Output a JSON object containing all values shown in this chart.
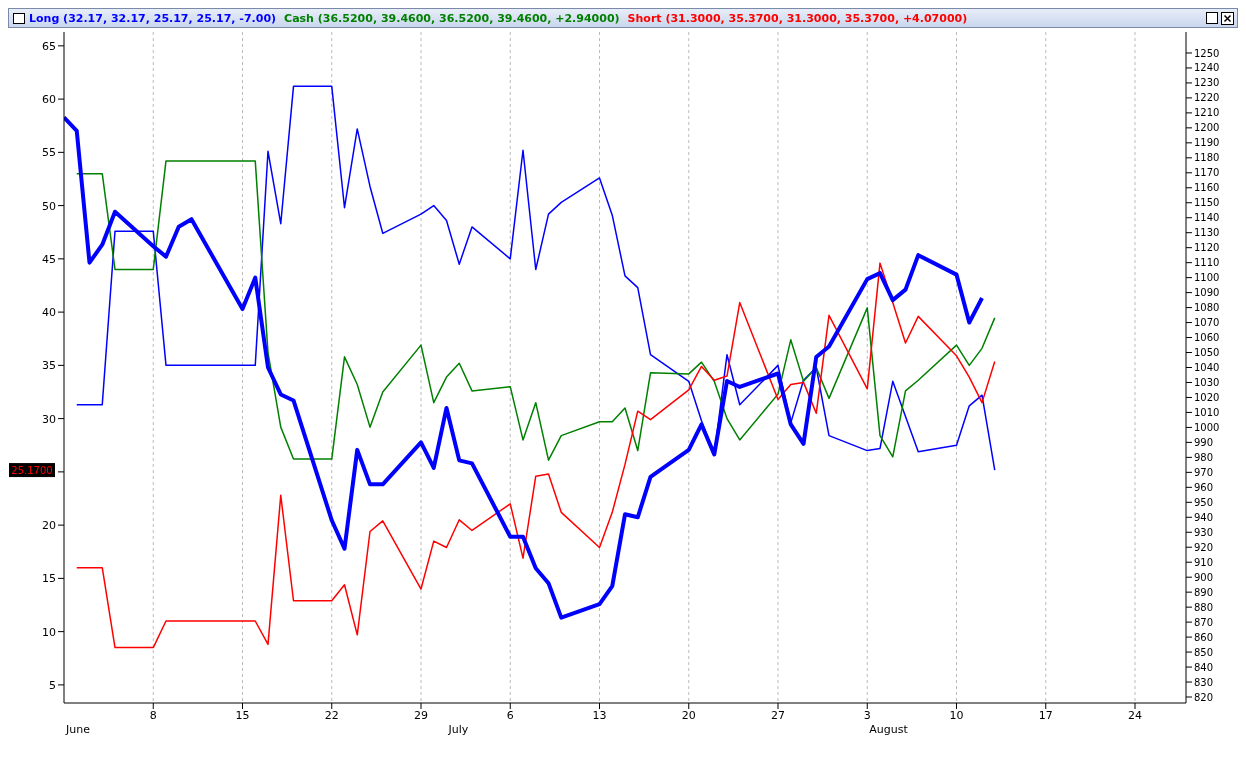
{
  "chart_data": {
    "type": "line",
    "legend": "top",
    "grid": "x",
    "marker": "none",
    "line_style": "solid",
    "annotations": [
      "25.1700",
      "June",
      "July",
      "August"
    ],
    "x": [
      "--06-01",
      "--06-02",
      "--06-03",
      "--06-04",
      "--06-05",
      "--06-08",
      "--06-09",
      "--06-10",
      "--06-11",
      "--06-15",
      "--06-16",
      "--06-17",
      "--06-18",
      "--06-19",
      "--06-22",
      "--06-23",
      "--06-24",
      "--06-25",
      "--06-26",
      "--06-29",
      "--06-30",
      "--07-01",
      "--07-02",
      "--07-03",
      "--07-06",
      "--07-07",
      "--07-08",
      "--07-09",
      "--07-10",
      "--07-13",
      "--07-14",
      "--07-15",
      "--07-16",
      "--07-17",
      "--07-20",
      "--07-21",
      "--07-22",
      "--07-23",
      "--07-24",
      "--07-27",
      "--07-28",
      "--07-29",
      "--07-30",
      "--07-31",
      "--08-03",
      "--08-04",
      "--08-05",
      "--08-06",
      "--08-07",
      "--08-10",
      "--08-11",
      "--08-12",
      "--08-13"
    ],
    "xlim": [
      "--06-01",
      "--08-28"
    ],
    "xticks": [
      {
        "value": "--06-08",
        "label": "8"
      },
      {
        "value": "--06-15",
        "label": "15"
      },
      {
        "value": "--06-22",
        "label": "22"
      },
      {
        "value": "--06-29",
        "label": "29"
      },
      {
        "value": "--07-06",
        "label": "6"
      },
      {
        "value": "--07-13",
        "label": "13"
      },
      {
        "value": "--07-20",
        "label": "20"
      },
      {
        "value": "--07-27",
        "label": "27"
      },
      {
        "value": "--08-03",
        "label": "3"
      },
      {
        "value": "--08-10",
        "label": "10"
      },
      {
        "value": "--08-17",
        "label": "17"
      },
      {
        "value": "--08-24",
        "label": "24"
      }
    ],
    "ylim": [
      3.3,
      66.3
    ],
    "yticks": [
      5,
      10,
      15,
      20,
      {
        "value": 25,
        "label": null
      },
      30,
      35,
      40,
      45,
      50,
      55,
      60,
      65
    ],
    "y2lim": [
      816,
      1264
    ],
    "y2ticks": [
      820,
      830,
      840,
      850,
      860,
      870,
      880,
      890,
      900,
      910,
      920,
      930,
      940,
      950,
      960,
      970,
      980,
      990,
      1000,
      1010,
      1020,
      1030,
      1040,
      1050,
      1060,
      1070,
      1080,
      1090,
      1100,
      1110,
      1120,
      1130,
      1140,
      1150,
      1160,
      1170,
      1180,
      1190,
      1200,
      1210,
      1220,
      1230,
      1240,
      1250
    ],
    "series": [
      {
        "name": "Long (32.17, 32.17, 25.17, 25.17, -7.00)",
        "color": "#0000ff",
        "values": [
          null,
          31.3,
          31.3,
          31.3,
          47.6,
          47.6,
          35,
          35,
          35,
          35,
          35,
          55.1,
          48.3,
          61.2,
          61.2,
          49.8,
          57.2,
          51.8,
          47.4,
          49.2,
          50.0,
          48.6,
          44.5,
          48.0,
          45.0,
          55.2,
          44.0,
          49.2,
          50.3,
          52.6,
          49.1,
          43.4,
          42.3,
          36.0,
          33.5,
          29.8,
          26.6,
          36.0,
          31.3,
          35.0,
          29.6,
          33.6,
          34.8,
          28.4,
          27.0,
          27.2,
          33.5,
          30.2,
          26.9,
          27.5,
          31.2,
          32.2,
          25.17
        ]
      },
      {
        "name": "Cash (36.5200, 39.4600, 36.5200, 39.4600, +2.94000)",
        "color": "#008000",
        "values": [
          null,
          53,
          53,
          53,
          44,
          44,
          54.2,
          54.2,
          54.2,
          54.2,
          54.2,
          36.2,
          29.2,
          26.2,
          26.2,
          35.8,
          33.2,
          29.2,
          32.5,
          36.9,
          31.5,
          33.9,
          35.2,
          32.6,
          33.0,
          28.0,
          31.5,
          26.1,
          28.4,
          29.7,
          29.7,
          31.0,
          27.0,
          34.3,
          34.2,
          35.3,
          33.5,
          30.0,
          28.0,
          32.3,
          37.4,
          33.5,
          34.8,
          31.9,
          40.4,
          28.4,
          26.4,
          32.6,
          33.6,
          36.9,
          35.0,
          36.6,
          39.46
        ]
      },
      {
        "name": "Short (31.3000, 35.3700, 31.3000, 35.3700, +4.07000)",
        "color": "#ff0000",
        "values": [
          null,
          16,
          16,
          16,
          8.5,
          8.5,
          11,
          11,
          11,
          11,
          11,
          8.8,
          22.8,
          12.9,
          12.9,
          14.4,
          9.7,
          19.4,
          20.4,
          14.0,
          18.5,
          17.9,
          20.5,
          19.5,
          22.0,
          16.9,
          24.6,
          24.8,
          21.2,
          17.9,
          21.2,
          25.7,
          30.7,
          29.9,
          32.7,
          34.9,
          33.6,
          34.0,
          40.9,
          31.8,
          33.2,
          33.4,
          30.5,
          39.7,
          32.8,
          44.6,
          40.9,
          37.1,
          39.6,
          35.9,
          33.9,
          31.5,
          35.37
        ]
      },
      {
        "axis": "y2",
        "color": "#0000ff",
        "values": [
          1207,
          1198,
          1110,
          1122,
          1144,
          1121,
          1114,
          1134,
          1139,
          1079,
          1100,
          1040,
          1022,
          1018,
          938,
          919,
          985,
          962,
          962,
          990,
          973,
          1013,
          978,
          976,
          927,
          927,
          906,
          896,
          873,
          882,
          894,
          942,
          940,
          967,
          985,
          1002,
          982,
          1031,
          1027,
          1036,
          1002,
          989,
          1047,
          1054,
          1099,
          1103,
          1085,
          1092,
          1115,
          1102,
          1070,
          1086.41,
          null
        ]
      }
    ]
  }
}
